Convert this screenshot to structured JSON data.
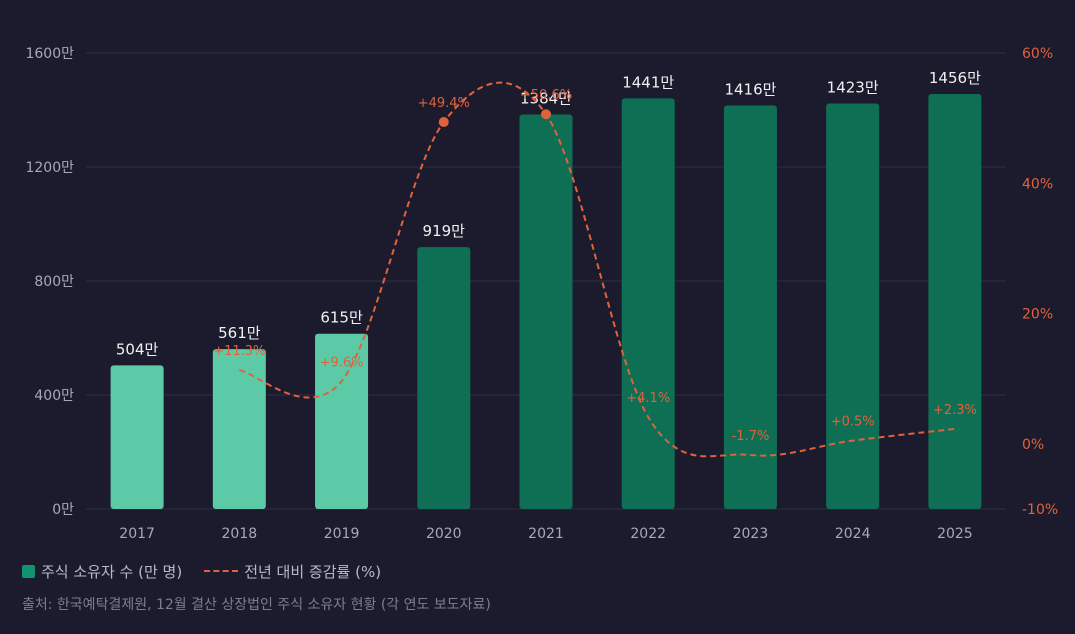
{
  "chart_data": {
    "type": "bar",
    "categories": [
      "2017",
      "2018",
      "2019",
      "2020",
      "2021",
      "2022",
      "2023",
      "2024",
      "2025"
    ],
    "series": [
      {
        "name": "주식 소유자 수 (만 명)",
        "type": "bar",
        "axis": "left",
        "values": [
          504,
          561,
          615,
          919,
          1384,
          1441,
          1416,
          1423,
          1456
        ],
        "labels": [
          "504만",
          "561만",
          "615만",
          "919만",
          "1384만",
          "1441만",
          "1416만",
          "1423만",
          "1456만"
        ],
        "colors": [
          "#5ccaa6",
          "#5ccaa6",
          "#5ccaa6",
          "#0e6f54",
          "#0e6f54",
          "#0e6f54",
          "#0e6f54",
          "#0e6f54",
          "#0e6f54"
        ]
      },
      {
        "name": "전년 대비 증감률 (%)",
        "type": "line",
        "axis": "right",
        "values": [
          null,
          11.3,
          9.6,
          49.4,
          50.6,
          4.1,
          -1.7,
          0.5,
          2.3
        ],
        "labels": [
          "",
          "+11.3%",
          "+9.6%",
          "+49.4%",
          "+50.6%",
          "+4.1%",
          "-1.7%",
          "+0.5%",
          "+2.3%"
        ],
        "color": "#e0623c"
      }
    ],
    "y_left": {
      "ticks": [
        0,
        400,
        800,
        1200,
        1600
      ],
      "tick_labels": [
        "0만",
        "400만",
        "800만",
        "1200만",
        "1600만"
      ],
      "range": [
        0,
        1600
      ]
    },
    "y_right": {
      "ticks": [
        -10,
        0,
        20,
        40,
        60
      ],
      "tick_labels": [
        "-10%",
        "0%",
        "20%",
        "40%",
        "60%"
      ],
      "range": [
        -10,
        60
      ]
    },
    "grid": true,
    "legend_position": "bottom-left"
  },
  "legend": {
    "bar_label": "주식 소유자 수 (만 명)",
    "line_label": "전년 대비 증감률 (%)"
  },
  "source": "출처: 한국예탁결제원, 12월 결산 상장법인 주식 소유자 현황 (각 연도 보도자료)",
  "colors": {
    "background": "#1b1b2d",
    "bar_light": "#5ccaa6",
    "bar_dark": "#0e6f54",
    "line": "#e0623c",
    "grid": "#2f2f44",
    "axis_text": "#a8a8b5",
    "label_text": "#f0f0f0"
  }
}
